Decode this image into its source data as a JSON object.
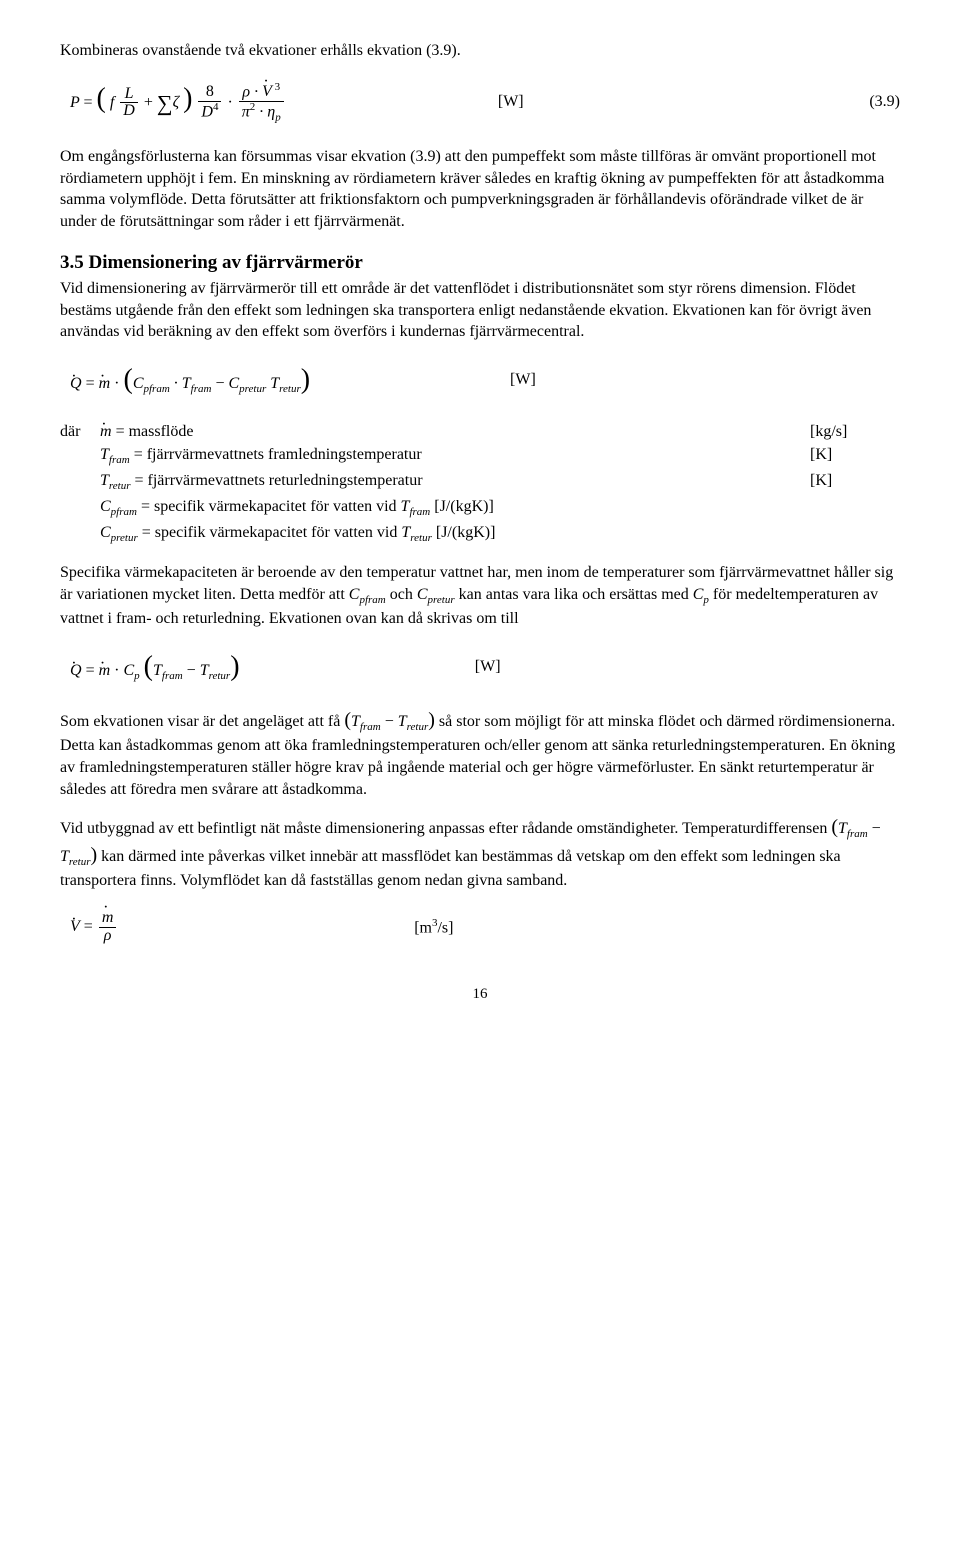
{
  "p_intro": "Kombineras ovanstående två ekvationer erhålls ekvation (3.9).",
  "eq39_unit": "[W]",
  "eq39_num": "(3.9)",
  "p_after39a": "Om engångsförlusterna kan försummas visar ekvation (3.9) att den pumpeffekt som måste tillföras är omvänt proportionell mot rördiametern upphöjt i fem. En minskning av rördiametern kräver således en kraftig ökning av pumpeffekten för att åstadkomma samma volymflöde. Detta förutsätter att friktionsfaktorn och pumpverkningsgraden är förhållandevis oförändrade vilket de är under de förutsättningar som råder i ett fjärrvärmenät.",
  "h35": "3.5 Dimensionering av fjärrvärmerör",
  "p_35a": "Vid dimensionering av fjärrvärmerör till ett område är det vattenflödet i distributionsnätet som styr rörens dimension. Flödet bestäms utgående från den effekt som ledningen ska transportera enligt nedanstående ekvation. Ekvationen kan för övrigt även användas vid beräkning av den effekt som överförs i kundernas fjärrvärmecentral.",
  "eqQ1_unit": "[W]",
  "defs_where": "där",
  "def_m": " = massflöde",
  "def_m_u": "[kg/s]",
  "def_Tf": " = fjärrvärmevattnets framledningstemperatur",
  "def_Tf_u": "[K]",
  "def_Tr": " = fjärrvärmevattnets returledningstemperatur",
  "def_Tr_u": "[K]",
  "def_Cpf_a": " = specifik värmekapacitet för vatten vid ",
  "def_Cpf_u": " [J/(kgK)]",
  "def_Cpr_a": " = specifik värmekapacitet för vatten vid ",
  "def_Cpr_u": " [J/(kgK)]",
  "p_spec_a": "Specifika värmekapaciteten är beroende av den temperatur vattnet har, men inom de temperaturer som fjärrvärmevattnet håller sig är variationen mycket liten. Detta medför att ",
  "p_spec_b": " och ",
  "p_spec_c": " kan antas vara lika och ersättas med ",
  "p_spec_d": " för medeltemperaturen av vattnet i fram- och returledning. Ekvationen ovan kan då skrivas om till",
  "eqQ2_unit": "[W]",
  "p_flow_a": "Som ekvationen visar är det angeläget att få ",
  "p_flow_b": " så stor som möjligt för att minska flödet och därmed rördimensionerna. Detta kan åstadkommas genom att öka framledningstemperaturen och/eller genom att sänka returledningstemperaturen. En ökning av framledningstemperaturen ställer högre krav på ingående material och ger högre värmeförluster. En sänkt returtemperatur är således att föredra men svårare att åstadkomma.",
  "p_ext_a": "Vid utbyggnad av ett befintligt nät måste dimensionering anpassas efter rådande omständigheter. Temperaturdifferensen ",
  "p_ext_b": " kan därmed inte påverkas vilket innebär att massflödet kan bestämmas då vetskap om den effekt som ledningen ska transportera finns. Volymflödet kan då fastställas genom nedan givna samband.",
  "eqV_unit": "[m",
  "eqV_unit2": "/s]",
  "eqV_unit_sup": "3",
  "pagenum": "16"
}
